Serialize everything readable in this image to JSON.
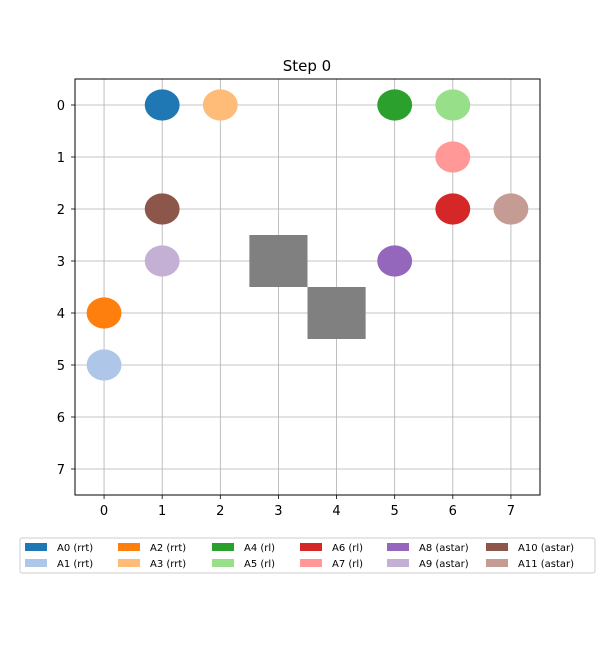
{
  "chart_data": {
    "type": "scatter",
    "title": "Step 0",
    "xlabel": "",
    "ylabel": "",
    "xlim": [
      -0.5,
      7.5
    ],
    "ylim": [
      7.5,
      -0.5
    ],
    "y_inverted": true,
    "x_ticks": [
      0,
      1,
      2,
      3,
      4,
      5,
      6,
      7
    ],
    "y_ticks": [
      0,
      1,
      2,
      3,
      4,
      5,
      6,
      7
    ],
    "grid": true,
    "legend_placement": "bottom",
    "legend_columns": 6,
    "obstacles": [
      {
        "x": 3,
        "y": 3,
        "color": "#808080"
      },
      {
        "x": 4,
        "y": 4,
        "color": "#808080"
      }
    ],
    "series": [
      {
        "name": "A0 (rrt)",
        "color": "#1f77b4",
        "x": 1,
        "y": 0
      },
      {
        "name": "A1 (rrt)",
        "color": "#aec7e8",
        "x": 0,
        "y": 5
      },
      {
        "name": "A2 (rrt)",
        "color": "#ff7f0e",
        "x": 0,
        "y": 4
      },
      {
        "name": "A3 (rrt)",
        "color": "#ffbb78",
        "x": 2,
        "y": 0
      },
      {
        "name": "A4 (rl)",
        "color": "#2ca02c",
        "x": 5,
        "y": 0
      },
      {
        "name": "A5 (rl)",
        "color": "#98df8a",
        "x": 6,
        "y": 0
      },
      {
        "name": "A6 (rl)",
        "color": "#d62728",
        "x": 6,
        "y": 2
      },
      {
        "name": "A7 (rl)",
        "color": "#ff9896",
        "x": 6,
        "y": 1
      },
      {
        "name": "A8 (astar)",
        "color": "#9467bd",
        "x": 5,
        "y": 3
      },
      {
        "name": "A9 (astar)",
        "color": "#c5b0d5",
        "x": 1,
        "y": 3
      },
      {
        "name": "A10 (astar)",
        "color": "#8c564b",
        "x": 1,
        "y": 2
      },
      {
        "name": "A11 (astar)",
        "color": "#c49c94",
        "x": 7,
        "y": 2
      }
    ]
  }
}
